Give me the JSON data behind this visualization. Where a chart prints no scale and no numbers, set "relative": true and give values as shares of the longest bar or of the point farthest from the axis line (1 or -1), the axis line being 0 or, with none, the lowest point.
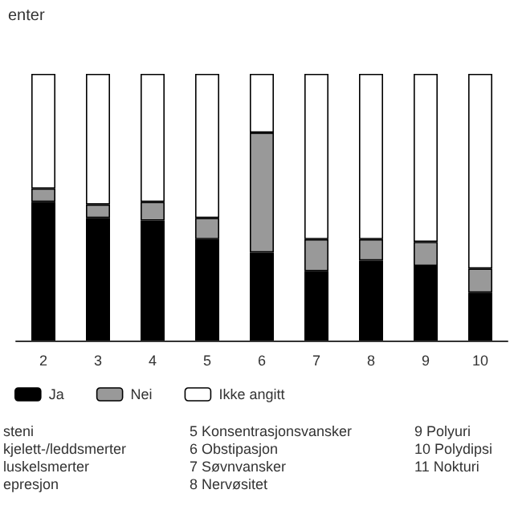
{
  "chart_data": {
    "type": "bar",
    "title": "enter",
    "stacked": true,
    "relative": true,
    "legend": "bottom left",
    "categories": [
      "2",
      "3",
      "4",
      "5",
      "6",
      "7",
      "8",
      "9",
      "10"
    ],
    "series": [
      {
        "name": "Ja",
        "color": "#000000",
        "values": [
          0.52,
          0.46,
          0.45,
          0.38,
          0.33,
          0.26,
          0.3,
          0.28,
          0.18
        ]
      },
      {
        "name": "Nei",
        "color": "#999999",
        "values": [
          0.05,
          0.05,
          0.07,
          0.08,
          0.45,
          0.12,
          0.08,
          0.09,
          0.09
        ]
      },
      {
        "name": "Ikke angitt",
        "color": "#ffffff",
        "values": [
          0.43,
          0.49,
          0.48,
          0.54,
          0.22,
          0.62,
          0.62,
          0.63,
          0.73
        ]
      }
    ],
    "annotations": [
      "steni",
      "kjelett-/leddsmerter",
      "luskelsmerter",
      "epresjon",
      "5 Konsentrasjonsvansker",
      "6 Obstipasjon",
      "7 Søvnvansker",
      "8 Nervøsitet",
      "9 Polyuri",
      "10 Polydipsi",
      "11 Nokturi"
    ]
  }
}
